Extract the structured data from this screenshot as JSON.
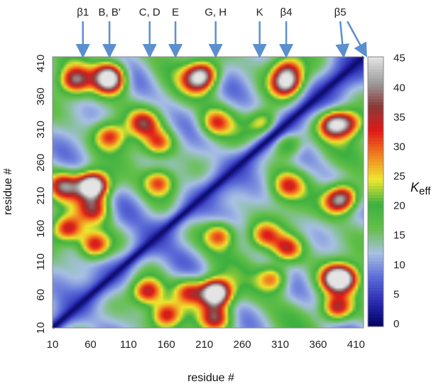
{
  "chart_data": {
    "type": "heatmap",
    "title": "",
    "xlabel": "residue #",
    "ylabel": "residue #",
    "x_ticks": [
      "10",
      "60",
      "110",
      "160",
      "210",
      "260",
      "310",
      "360",
      "410"
    ],
    "y_ticks": [
      "10",
      "60",
      "110",
      "160",
      "210",
      "260",
      "310",
      "360",
      "410"
    ],
    "xlim": [
      10,
      420
    ],
    "ylim": [
      10,
      420
    ],
    "colorbar": {
      "label_main": "K",
      "label_sub": "eff",
      "ticks": [
        "0",
        "5",
        "10",
        "15",
        "20",
        "25",
        "30",
        "35",
        "40",
        "45"
      ],
      "range": [
        0,
        45
      ],
      "colors": [
        "#000060",
        "#2a2ab0",
        "#5a6ad8",
        "#a8c0e4",
        "#64c04a",
        "#3cb040",
        "#f0e830",
        "#f08020",
        "#e01818",
        "#8a3a3a",
        "#a0a0a0",
        "#e4e4e4"
      ]
    },
    "annotations": [
      {
        "label": "β1",
        "residues": [
          50
        ]
      },
      {
        "label": "B, B′",
        "residues": [
          85
        ]
      },
      {
        "label": "C, D",
        "residues": [
          138
        ]
      },
      {
        "label": "E",
        "residues": [
          172
        ]
      },
      {
        "label": "G, H",
        "residues": [
          225
        ]
      },
      {
        "label": "K",
        "residues": [
          283
        ]
      },
      {
        "label": "β4",
        "residues": [
          318
        ]
      },
      {
        "label": "β5",
        "residues": [
          393,
          420
        ]
      }
    ],
    "note": "Symmetric map of K_eff between residue pairs; values near 0 (dark blue) along the diagonal, high values (25–40) in off-diagonal blocks.",
    "hotspots": [
      {
        "x": 40,
        "y": 385,
        "v": 36
      },
      {
        "x": 85,
        "y": 382,
        "v": 38
      },
      {
        "x": 200,
        "y": 385,
        "v": 32
      },
      {
        "x": 318,
        "y": 380,
        "v": 40
      },
      {
        "x": 130,
        "y": 320,
        "v": 33
      },
      {
        "x": 225,
        "y": 320,
        "v": 30
      },
      {
        "x": 290,
        "y": 318,
        "v": 32
      },
      {
        "x": 25,
        "y": 225,
        "v": 35
      },
      {
        "x": 60,
        "y": 225,
        "v": 33
      },
      {
        "x": 30,
        "y": 160,
        "v": 35
      },
      {
        "x": 230,
        "y": 150,
        "v": 32
      },
      {
        "x": 290,
        "y": 150,
        "v": 30
      },
      {
        "x": 135,
        "y": 65,
        "v": 36
      },
      {
        "x": 190,
        "y": 65,
        "v": 32
      },
      {
        "x": 225,
        "y": 65,
        "v": 38
      },
      {
        "x": 300,
        "y": 85,
        "v": 32
      },
      {
        "x": 395,
        "y": 85,
        "v": 34
      },
      {
        "x": 395,
        "y": 210,
        "v": 33
      },
      {
        "x": 400,
        "y": 320,
        "v": 30
      }
    ]
  }
}
